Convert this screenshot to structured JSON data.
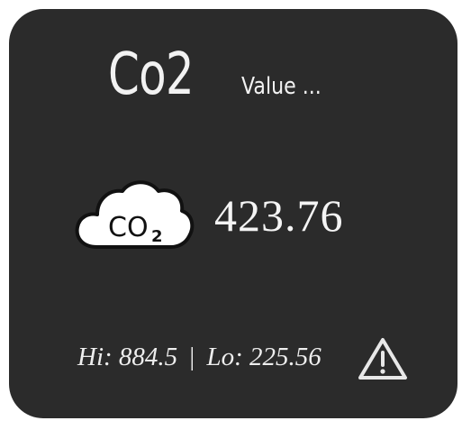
{
  "title": {
    "main": "Co2",
    "sub": "Value ..."
  },
  "reading": {
    "value": "423.76",
    "icon_label": "CO",
    "icon_subscript": "2"
  },
  "range": {
    "hi_label": "Hi:",
    "hi_value": "884.5",
    "separator": "|",
    "lo_label": "Lo:",
    "lo_value": "225.56"
  },
  "icons": {
    "cloud": "co2-cloud-icon",
    "warning": "warning-triangle-icon"
  },
  "colors": {
    "card_background": "#2b2b2b",
    "text": "#f2f2f2",
    "cloud_fill": "#ffffff"
  }
}
